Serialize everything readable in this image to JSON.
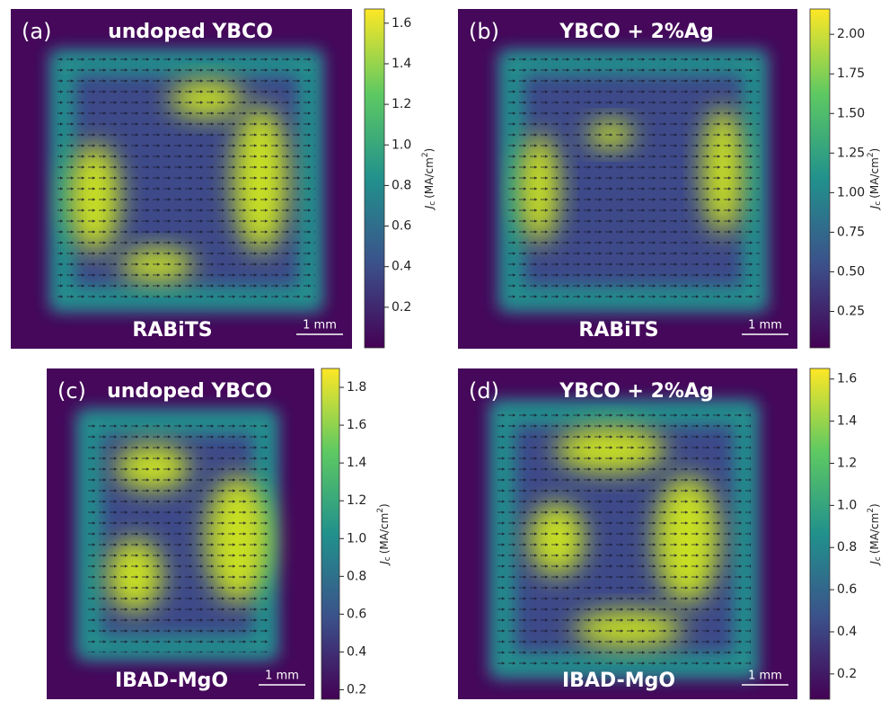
{
  "chart_data": [
    {
      "type": "heatmap",
      "panel_label": "(a)",
      "title": "undoped YBCO",
      "substrate": "RABiTS",
      "scale_bar": "1 mm",
      "colorbar_label": {
        "symbol": "J",
        "subscript": "c",
        "unit": "(MA/cm",
        "superscript": "2",
        "close": ")"
      },
      "clim": [
        0.0,
        1.67
      ],
      "cticks": [
        0.2,
        0.4,
        0.6,
        0.8,
        {
          "value": 1.0,
          "label": "1.0"
        },
        1.2,
        1.4,
        1.6
      ]
    },
    {
      "type": "heatmap",
      "panel_label": "(b)",
      "title": "YBCO + 2%Ag",
      "substrate": "RABiTS",
      "scale_bar": "1 mm",
      "colorbar_label": {
        "symbol": "J",
        "subscript": "c",
        "unit": "(MA/cm",
        "superscript": "2",
        "close": ")"
      },
      "clim": [
        0.02,
        2.16
      ],
      "cticks": [
        0.25,
        {
          "value": 0.5,
          "label": "0.50"
        },
        0.75,
        {
          "value": 1.0,
          "label": "1.00"
        },
        1.25,
        {
          "value": 1.5,
          "label": "1.50"
        },
        1.75,
        {
          "value": 2.0,
          "label": "2.00"
        }
      ]
    },
    {
      "type": "heatmap",
      "panel_label": "(c)",
      "title": "undoped YBCO",
      "substrate": "IBAD-MgO",
      "scale_bar": "1 mm",
      "colorbar_label": {
        "symbol": "J",
        "subscript": "c",
        "unit": "(MA/cm",
        "superscript": "2",
        "close": ")"
      },
      "clim": [
        0.15,
        1.9
      ],
      "cticks": [
        0.2,
        0.4,
        0.6,
        0.8,
        {
          "value": 1.0,
          "label": "1.0"
        },
        1.2,
        1.4,
        1.6,
        1.8
      ]
    },
    {
      "type": "heatmap",
      "panel_label": "(d)",
      "title": "YBCO + 2%Ag",
      "substrate": "IBAD-MgO",
      "scale_bar": "1 mm",
      "colorbar_label": {
        "symbol": "J",
        "subscript": "c",
        "unit": "(MA/cm",
        "superscript": "2",
        "close": ")"
      },
      "clim": [
        0.08,
        1.65
      ],
      "cticks": [
        0.2,
        0.4,
        0.6,
        0.8,
        {
          "value": 1.0,
          "label": "1.0"
        },
        1.2,
        1.4,
        1.6
      ]
    }
  ]
}
